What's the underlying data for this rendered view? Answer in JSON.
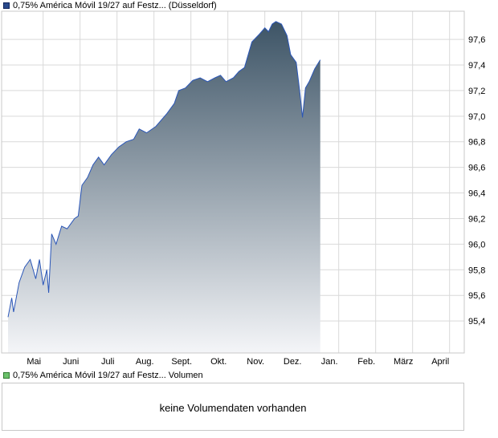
{
  "price_legend": "0,75% América Móvil 19/27 auf Festz... (Düsseldorf)",
  "volume_legend": "0,75% América Móvil 19/27 auf Festz... Volumen",
  "volume_message": "keine Volumendaten vorhanden",
  "colors": {
    "line": "#2a56b8",
    "fill_top": "#3d5466",
    "fill_bottom": "#f4f5f8",
    "grid": "#d9d9d9"
  },
  "chart_data": {
    "type": "area",
    "title": "",
    "xlabel": "",
    "ylabel": "",
    "ylim": [
      95.15,
      97.82
    ],
    "y_axis_side": "right",
    "y_ticks": [
      "95,4",
      "95,6",
      "95,8",
      "96,0",
      "96,2",
      "96,4",
      "96,6",
      "96,8",
      "97,0",
      "97,2",
      "97,4",
      "97,6"
    ],
    "x_ticks": [
      "Mai",
      "Juni",
      "Juli",
      "Aug.",
      "Sept.",
      "Okt.",
      "Nov.",
      "Dez.",
      "Jan.",
      "Feb.",
      "März",
      "April"
    ],
    "grid": true,
    "series": [
      {
        "values": [
          [
            0.0,
            95.43
          ],
          [
            0.1,
            95.58
          ],
          [
            0.15,
            95.47
          ],
          [
            0.3,
            95.7
          ],
          [
            0.45,
            95.82
          ],
          [
            0.6,
            95.88
          ],
          [
            0.75,
            95.73
          ],
          [
            0.85,
            95.88
          ],
          [
            0.95,
            95.68
          ],
          [
            1.05,
            95.8
          ],
          [
            1.1,
            95.62
          ],
          [
            1.18,
            96.08
          ],
          [
            1.3,
            96.0
          ],
          [
            1.45,
            96.14
          ],
          [
            1.6,
            96.12
          ],
          [
            1.8,
            96.2
          ],
          [
            1.9,
            96.22
          ],
          [
            2.0,
            96.46
          ],
          [
            2.15,
            96.52
          ],
          [
            2.3,
            96.62
          ],
          [
            2.45,
            96.68
          ],
          [
            2.6,
            96.62
          ],
          [
            2.8,
            96.7
          ],
          [
            3.0,
            96.76
          ],
          [
            3.2,
            96.8
          ],
          [
            3.4,
            96.82
          ],
          [
            3.55,
            96.9
          ],
          [
            3.75,
            96.87
          ],
          [
            4.0,
            96.92
          ],
          [
            4.3,
            97.02
          ],
          [
            4.5,
            97.1
          ],
          [
            4.62,
            97.2
          ],
          [
            4.8,
            97.22
          ],
          [
            5.0,
            97.28
          ],
          [
            5.2,
            97.3
          ],
          [
            5.4,
            97.27
          ],
          [
            5.6,
            97.3
          ],
          [
            5.75,
            97.32
          ],
          [
            5.9,
            97.27
          ],
          [
            6.1,
            97.3
          ],
          [
            6.25,
            97.35
          ],
          [
            6.4,
            97.38
          ],
          [
            6.5,
            97.48
          ],
          [
            6.6,
            97.58
          ],
          [
            6.8,
            97.64
          ],
          [
            6.95,
            97.69
          ],
          [
            7.05,
            97.66
          ],
          [
            7.15,
            97.72
          ],
          [
            7.25,
            97.74
          ],
          [
            7.4,
            97.72
          ],
          [
            7.55,
            97.63
          ],
          [
            7.65,
            97.48
          ],
          [
            7.8,
            97.42
          ],
          [
            7.9,
            97.18
          ],
          [
            7.97,
            96.99
          ],
          [
            8.05,
            97.22
          ],
          [
            8.15,
            97.27
          ],
          [
            8.3,
            97.37
          ],
          [
            8.45,
            97.44
          ]
        ]
      }
    ]
  }
}
